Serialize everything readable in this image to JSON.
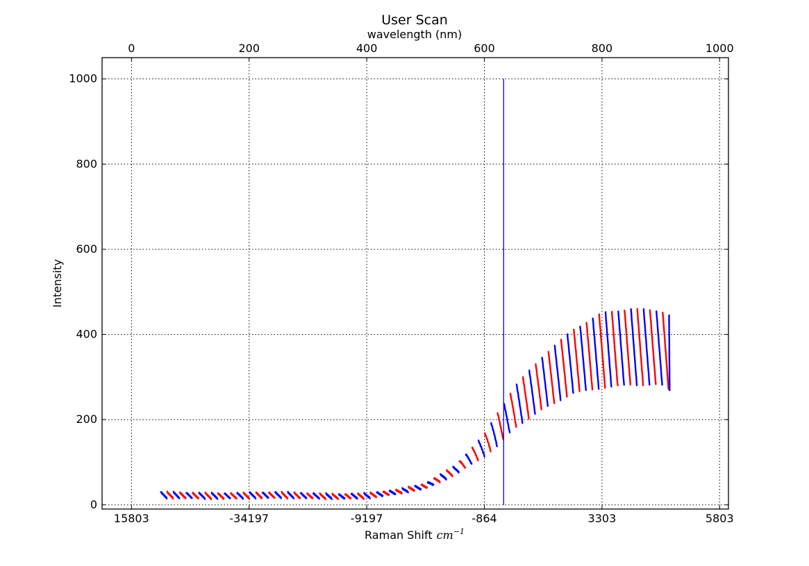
{
  "chart_data": {
    "type": "line",
    "title": "User Scan",
    "top_axis": {
      "label": "wavelength (nm)",
      "range": [
        -50,
        1015
      ],
      "ticks": [
        0,
        200,
        400,
        600,
        800,
        1000
      ],
      "tick_labels": [
        "0",
        "200",
        "400",
        "600",
        "800",
        "1000"
      ]
    },
    "bottom_axis": {
      "label": "Raman Shift",
      "label_unit": "cm",
      "label_unit_exponent": "−1",
      "tick_wavelengths_nm": [
        0,
        200,
        400,
        600,
        800,
        1000
      ],
      "tick_labels": [
        "15803",
        "-34197",
        "-9197",
        "-864",
        "3303",
        "5803"
      ]
    },
    "y_axis": {
      "label": "Intensity",
      "range": [
        -10,
        1050
      ],
      "ticks": [
        0,
        200,
        400,
        600,
        800,
        1000
      ],
      "tick_labels": [
        "0",
        "200",
        "400",
        "600",
        "800",
        "1000"
      ]
    },
    "grid": true,
    "marker_line": {
      "wavelength_nm": 632.8,
      "y_range": [
        0,
        1000
      ],
      "color": "#0000ff"
    },
    "colors": {
      "series_a": "#ff0000",
      "series_b": "#0000ff"
    },
    "sweeps": {
      "description_of_values": "short repeated sweeps over wavelength; each sweep spans wavelength_start to wavelength_end with intensity falling from high to low",
      "x_start_nm": 50,
      "x_end_nm": 915,
      "intensity_envelope": {
        "wavelength_nm": [
          50,
          150,
          250,
          350,
          400,
          450,
          500,
          550,
          600,
          625,
          650,
          700,
          750,
          800,
          850,
          900,
          915
        ],
        "low": [
          16,
          14,
          16,
          14,
          15,
          25,
          38,
          70,
          115,
          140,
          180,
          225,
          262,
          275,
          282,
          282,
          270
        ],
        "high": [
          30,
          27,
          30,
          25,
          27,
          35,
          50,
          92,
          165,
          222,
          275,
          350,
          410,
          450,
          460,
          455,
          445
        ]
      }
    }
  }
}
